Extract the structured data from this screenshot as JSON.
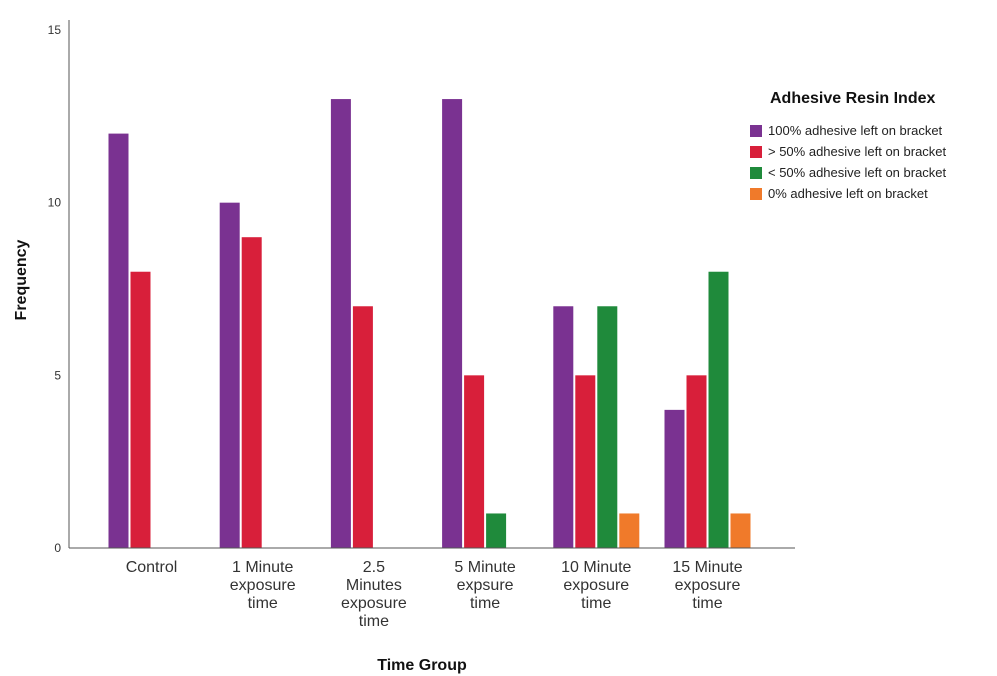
{
  "chart_data": {
    "type": "bar",
    "xlabel": "Time Group",
    "ylabel": "Frequency",
    "ylim": [
      0,
      15
    ],
    "yticks": [
      0,
      5,
      10,
      15
    ],
    "grid": false,
    "legend_title": "Adhesive Resin Index",
    "legend_position": "right",
    "categories": [
      [
        "Control"
      ],
      [
        "1 Minute",
        "exposure",
        "time"
      ],
      [
        "2.5",
        "Minutes",
        "exposure",
        "time"
      ],
      [
        "5 Minute",
        "expsure",
        "time"
      ],
      [
        "10 Minute",
        "exposure",
        "time"
      ],
      [
        "15 Minute",
        "exposure",
        "time"
      ]
    ],
    "series": [
      {
        "name": "100% adhesive left on bracket",
        "color": "#7a3291",
        "values": [
          12,
          10,
          13,
          13,
          7,
          4
        ]
      },
      {
        "name": "> 50% adhesive left on bracket",
        "color": "#d81f3a",
        "values": [
          8,
          9,
          7,
          5,
          5,
          5
        ]
      },
      {
        "name": "< 50% adhesive left on bracket",
        "color": "#1f8a3b",
        "values": [
          0,
          0,
          0,
          1,
          7,
          8
        ]
      },
      {
        "name": "0% adhesive left on bracket",
        "color": "#f07a2a",
        "values": [
          0,
          0,
          0,
          0,
          1,
          1
        ]
      }
    ]
  }
}
